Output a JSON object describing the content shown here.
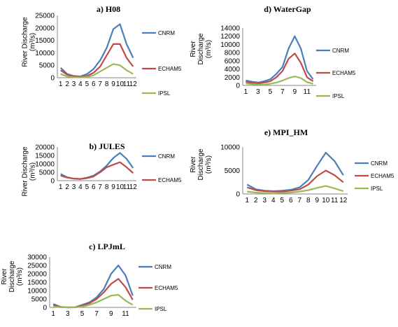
{
  "chart_data": [
    {
      "type": "line",
      "title": "a) H08",
      "ylabel_lines": [
        "River Discharge",
        "(m³/s)"
      ],
      "x": [
        1,
        2,
        3,
        4,
        5,
        6,
        7,
        8,
        9,
        10,
        11,
        12
      ],
      "x_tick_labels": [
        "1",
        "2",
        "3",
        "4",
        "5",
        "6",
        "7",
        "8",
        "9",
        "10",
        "11",
        "12"
      ],
      "ylim": [
        0,
        25000
      ],
      "y_ticks": [
        0,
        5000,
        10000,
        15000,
        20000,
        25000
      ],
      "y_tick_labels": [
        "0",
        "5000",
        "10000",
        "15000",
        "20000",
        "25000"
      ],
      "series": [
        {
          "name": "CNRM",
          "color": "#4a7ebb",
          "values": [
            4000,
            1500,
            700,
            500,
            1500,
            3500,
            7000,
            12000,
            19500,
            21500,
            13500,
            8000
          ]
        },
        {
          "name": "ECHAM5",
          "color": "#be4b48",
          "values": [
            3000,
            1200,
            500,
            300,
            700,
            2000,
            4500,
            9000,
            13500,
            13500,
            8000,
            4500
          ]
        },
        {
          "name": "IPSL",
          "color": "#98b954",
          "values": [
            1500,
            500,
            200,
            100,
            300,
            1000,
            2500,
            4000,
            5500,
            5000,
            3000,
            1500
          ]
        }
      ]
    },
    {
      "type": "line",
      "title": "b) JULES",
      "ylabel_lines": [
        "River Discharge",
        "(m³/s)"
      ],
      "x": [
        1,
        2,
        3,
        4,
        5,
        6,
        7,
        8,
        9,
        10,
        11,
        12
      ],
      "x_tick_labels": [
        "1",
        "2",
        "3",
        "4",
        "5",
        "6",
        "7",
        "8",
        "9",
        "10",
        "11",
        "12"
      ],
      "ylim": [
        0,
        20000
      ],
      "y_ticks": [
        0,
        5000,
        10000,
        15000,
        20000
      ],
      "y_tick_labels": [
        "0",
        "5000",
        "10000",
        "15000",
        "20000"
      ],
      "series": [
        {
          "name": "CNRM",
          "color": "#4a7ebb",
          "values": [
            4000,
            2000,
            1200,
            1000,
            1800,
            3000,
            5500,
            9000,
            13500,
            16500,
            13000,
            7500
          ]
        },
        {
          "name": "ECHAM5",
          "color": "#be4b48",
          "values": [
            3000,
            1800,
            1200,
            1000,
            1500,
            2500,
            5000,
            8000,
            9500,
            11000,
            8000,
            4500
          ]
        }
      ]
    },
    {
      "type": "line",
      "title": "c) LPJmL",
      "ylabel_lines": [
        "River",
        "Discharge",
        "(m³/s)"
      ],
      "x": [
        1,
        2,
        3,
        4,
        5,
        6,
        7,
        8,
        9,
        10,
        11,
        12
      ],
      "x_tick_labels": [
        "1",
        "",
        "3",
        "",
        "5",
        "",
        "7",
        "",
        "9",
        "",
        "11",
        ""
      ],
      "ylim": [
        0,
        30000
      ],
      "y_ticks": [
        0,
        5000,
        10000,
        15000,
        20000,
        25000,
        30000
      ],
      "y_tick_labels": [
        "0",
        "5000",
        "10000",
        "15000",
        "20000",
        "25000",
        "30000"
      ],
      "series": [
        {
          "name": "CNRM",
          "color": "#4a7ebb",
          "values": [
            2000,
            300,
            0,
            100,
            1500,
            3000,
            6000,
            11000,
            20000,
            25000,
            19000,
            7000
          ]
        },
        {
          "name": "ECHAM5",
          "color": "#be4b48",
          "values": [
            1500,
            200,
            0,
            100,
            1000,
            2500,
            5000,
            9000,
            14000,
            17000,
            12000,
            4500
          ]
        },
        {
          "name": "IPSL",
          "color": "#98b954",
          "values": [
            500,
            100,
            0,
            0,
            500,
            1500,
            3000,
            5000,
            7000,
            7500,
            4000,
            1500
          ]
        }
      ]
    },
    {
      "type": "line",
      "title": "d) WaterGap",
      "ylabel_lines": [
        "River",
        "Discharge",
        "(m³/s)"
      ],
      "x": [
        1,
        2,
        3,
        4,
        5,
        6,
        7,
        8,
        9,
        10,
        11,
        12
      ],
      "x_tick_labels": [
        "1",
        "",
        "3",
        "",
        "5",
        "",
        "7",
        "",
        "9",
        "",
        "11",
        ""
      ],
      "ylim": [
        0,
        14000
      ],
      "y_ticks": [
        0,
        2000,
        4000,
        6000,
        8000,
        10000,
        12000,
        14000
      ],
      "y_tick_labels": [
        "0",
        "2000",
        "4000",
        "6000",
        "8000",
        "10000",
        "12000",
        "14000"
      ],
      "series": [
        {
          "name": "CNRM",
          "color": "#4a7ebb",
          "values": [
            1200,
            900,
            700,
            1000,
            1500,
            2800,
            4500,
            9000,
            12000,
            9000,
            3500,
            1500
          ]
        },
        {
          "name": "ECHAM5",
          "color": "#be4b48",
          "values": [
            900,
            600,
            500,
            700,
            1000,
            2000,
            3500,
            6500,
            7800,
            5500,
            2000,
            1000
          ]
        },
        {
          "name": "IPSL",
          "color": "#98b954",
          "values": [
            500,
            300,
            200,
            200,
            400,
            700,
            1200,
            1800,
            2200,
            1800,
            800,
            400
          ]
        }
      ]
    },
    {
      "type": "line",
      "title": "e) MPI_HM",
      "ylabel_lines": [
        "River",
        "Discharge",
        "(m³/s)"
      ],
      "x": [
        1,
        2,
        3,
        4,
        5,
        6,
        7,
        8,
        9,
        10,
        11,
        12
      ],
      "x_tick_labels": [
        "1",
        "2",
        "3",
        "4",
        "5",
        "6",
        "7",
        "8",
        "9",
        "10",
        "11",
        "12"
      ],
      "ylim": [
        0,
        10000
      ],
      "y_ticks": [
        0,
        5000,
        10000
      ],
      "y_tick_labels": [
        "0",
        "5000",
        "10000"
      ],
      "series": [
        {
          "name": "CNRM",
          "color": "#4a7ebb",
          "values": [
            2000,
            1000,
            700,
            600,
            700,
            900,
            1400,
            3000,
            6000,
            8800,
            7000,
            4000
          ]
        },
        {
          "name": "ECHAM5",
          "color": "#be4b48",
          "values": [
            1400,
            800,
            600,
            500,
            500,
            700,
            1000,
            2000,
            3800,
            5000,
            4000,
            2500
          ]
        },
        {
          "name": "IPSL",
          "color": "#98b954",
          "values": [
            500,
            300,
            200,
            100,
            200,
            300,
            500,
            800,
            1300,
            1700,
            1200,
            600
          ]
        }
      ]
    }
  ]
}
